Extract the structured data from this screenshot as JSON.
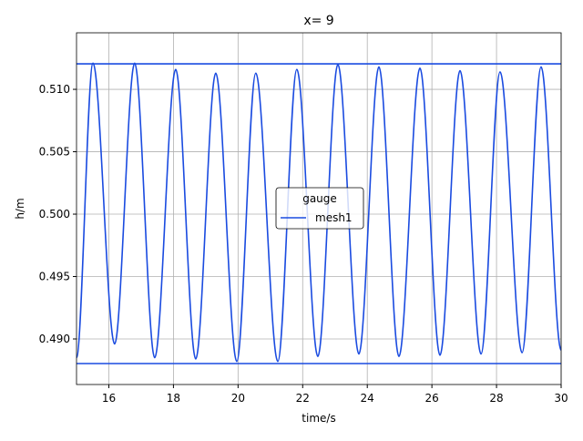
{
  "chart_data": {
    "type": "line",
    "title": "x= 9",
    "xlabel": "time/s",
    "ylabel": "h/m",
    "x": [
      15.0,
      15.51,
      16.18,
      16.8,
      17.42,
      18.07,
      18.69,
      19.31,
      19.96,
      20.55,
      21.23,
      21.82,
      22.47,
      23.09,
      23.74,
      24.36,
      24.98,
      25.63,
      26.25,
      26.87,
      27.52,
      28.11,
      28.79,
      29.38,
      30.0
    ],
    "series": [
      {
        "name": "mesh1",
        "color": "#1a4be0",
        "values": [
          0.4885,
          0.5121,
          0.4896,
          0.5121,
          0.4885,
          0.5116,
          0.4884,
          0.5113,
          0.4882,
          0.5113,
          0.4882,
          0.5116,
          0.4886,
          0.512,
          0.4888,
          0.5118,
          0.4886,
          0.5117,
          0.4887,
          0.5115,
          0.4888,
          0.5114,
          0.4889,
          0.5118,
          0.4891
        ]
      }
    ],
    "hlines": [
      0.51204,
      0.48803
    ],
    "legend_title": "gauge",
    "legend": "center",
    "grid": true,
    "xlim": [
      15,
      30
    ],
    "xticks": [
      16,
      18,
      20,
      22,
      24,
      26,
      28,
      30
    ],
    "ylim": [
      0.48635,
      0.51453
    ],
    "yticks": [
      {
        "value": 0.49,
        "label": "0.490"
      },
      0.495,
      {
        "value": 0.5,
        "label": "0.500"
      },
      0.505,
      {
        "value": 0.51,
        "label": "0.510"
      }
    ]
  }
}
